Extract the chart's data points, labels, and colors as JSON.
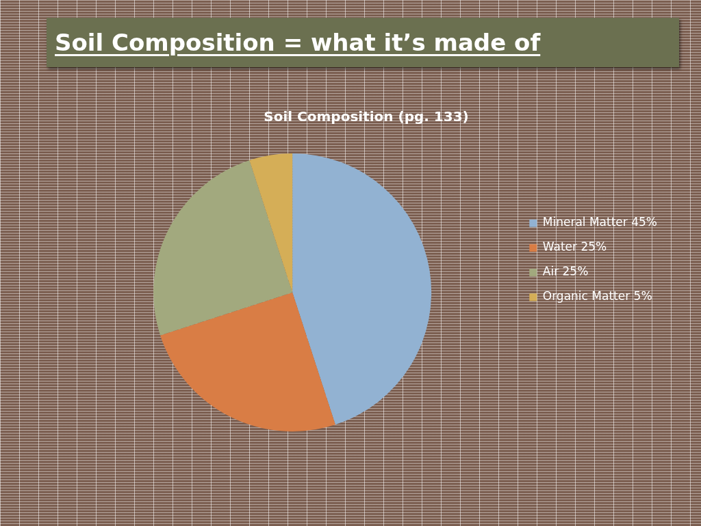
{
  "chart_data": {
    "type": "pie",
    "title": "Soil Composition = what it’s made of",
    "subtitle": "Soil Composition (pg. 133)",
    "categories": [
      "Mineral Matter 45%",
      "Water 25%",
      "Air 25%",
      "Organic Matter 5%"
    ],
    "values": [
      45,
      25,
      25,
      5
    ],
    "colors": [
      "#92b2d2",
      "#d97d45",
      "#a2a97e",
      "#d5ae57"
    ],
    "legend": "right"
  }
}
